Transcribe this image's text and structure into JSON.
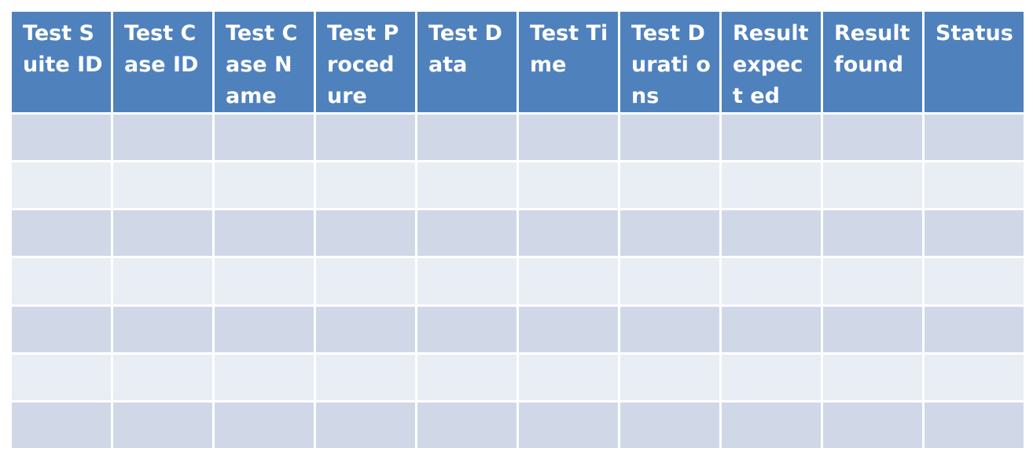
{
  "table": {
    "headers": [
      "Test Suite ID",
      "Test Case ID",
      "Test Case Name",
      "Test Proced ure",
      "Test Data",
      "Test Time",
      "Test Durati ons",
      "Result expect ed",
      "Result found",
      "Status"
    ],
    "rows": [
      [
        "",
        "",
        "",
        "",
        "",
        "",
        "",
        "",
        "",
        ""
      ],
      [
        "",
        "",
        "",
        "",
        "",
        "",
        "",
        "",
        "",
        ""
      ],
      [
        "",
        "",
        "",
        "",
        "",
        "",
        "",
        "",
        "",
        ""
      ],
      [
        "",
        "",
        "",
        "",
        "",
        "",
        "",
        "",
        "",
        ""
      ],
      [
        "",
        "",
        "",
        "",
        "",
        "",
        "",
        "",
        "",
        ""
      ],
      [
        "",
        "",
        "",
        "",
        "",
        "",
        "",
        "",
        "",
        ""
      ],
      [
        "",
        "",
        "",
        "",
        "",
        "",
        "",
        "",
        "",
        ""
      ]
    ]
  },
  "colors": {
    "header_bg": "#4f81bd",
    "header_text": "#ffffff",
    "row_band_dark": "#d0d8e8",
    "row_band_light": "#e9edf4"
  }
}
